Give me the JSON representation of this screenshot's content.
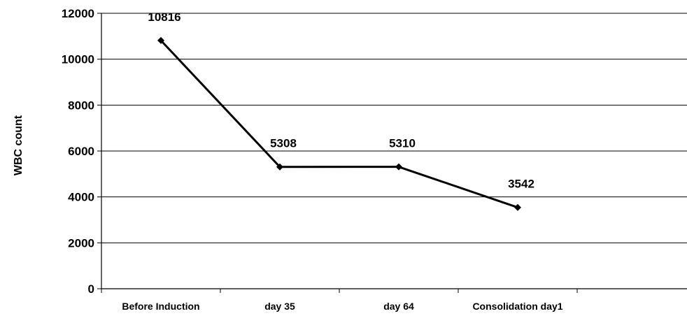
{
  "chart_data": {
    "type": "line",
    "title": "",
    "xlabel": "",
    "ylabel": "WBC count",
    "categories": [
      "Before Induction",
      "day 35",
      "day 64",
      "Consolidation day1"
    ],
    "series": [
      {
        "values": [
          10816,
          5308,
          5310,
          3542
        ],
        "color": "#000000"
      }
    ],
    "data_labels": [
      "10816",
      "5308",
      "5310",
      "3542"
    ],
    "ylim": [
      0,
      12000
    ],
    "yticks": [
      "0",
      "2000",
      "4000",
      "6000",
      "8000",
      "10000",
      "12000"
    ],
    "ytick_values": [
      0,
      2000,
      4000,
      6000,
      8000,
      10000,
      12000
    ],
    "grid": true,
    "legend": "none",
    "marker": "diamond"
  }
}
